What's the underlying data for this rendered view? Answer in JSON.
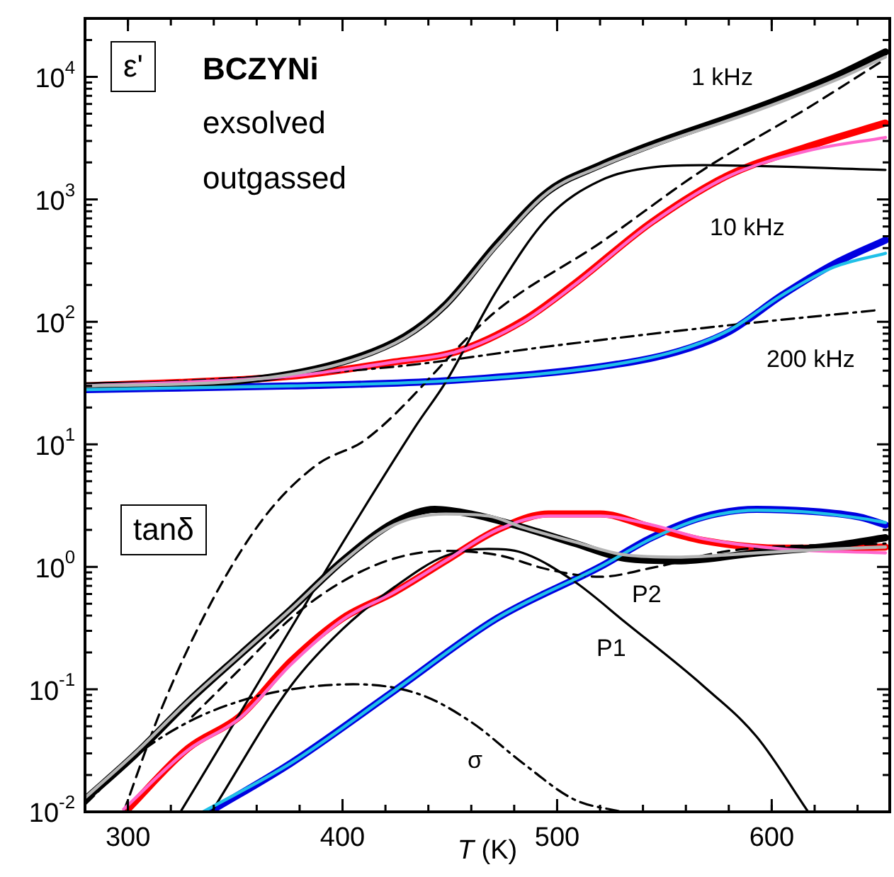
{
  "chart_data": {
    "type": "line",
    "xlabel": "T (K)",
    "xlim": [
      280,
      655
    ],
    "xticks": [
      300,
      400,
      500,
      600
    ],
    "log": "y",
    "ylim": [
      0.01,
      30000
    ],
    "yticks": [
      {
        "value": 0.01,
        "label": "10$^{-2}$"
      },
      {
        "value": 0.1,
        "label": "10$^{-1}$"
      },
      {
        "value": 1,
        "label": "10$^{0}$"
      },
      {
        "value": 10,
        "label": "10$^{1}$"
      },
      {
        "value": 100,
        "label": "10$^{2}$"
      },
      {
        "value": 1000,
        "label": "10$^{3}$"
      },
      {
        "value": 10000,
        "label": "10$^{4}$"
      }
    ],
    "annotations": [
      "ε'",
      "BCZYNi",
      "exsolved",
      "outgassed",
      "tanδ",
      "1 kHz",
      "10 kHz",
      "200 kHz",
      "P2",
      "P1",
      "σ"
    ],
    "series": [
      {
        "color": "#000000",
        "x": [
          280,
          352,
          400,
          429,
          448,
          472,
          496,
          520,
          544,
          593,
          629,
          653
        ],
        "values": [
          30,
          33,
          47,
          76,
          138,
          436,
          1170,
          1900,
          2800,
          5600,
          10000,
          16000
        ]
      },
      {
        "color": "#b4b4b4",
        "x": [
          280,
          352,
          400,
          429,
          448,
          472,
          496,
          520,
          544,
          593,
          629,
          653
        ],
        "values": [
          30,
          33,
          46,
          74,
          135,
          420,
          1150,
          1850,
          2700,
          5300,
          9300,
          14500
        ]
      },
      {
        "color": "#ff0000",
        "x": [
          280,
          376,
          424,
          453,
          484,
          508,
          544,
          580,
          617,
          653
        ],
        "values": [
          30,
          36,
          47,
          57,
          102,
          204,
          650,
          1580,
          2700,
          4200
        ]
      },
      {
        "color": "#ff66cc",
        "x": [
          280,
          376,
          424,
          453,
          484,
          508,
          544,
          580,
          617,
          653
        ],
        "values": [
          30,
          36,
          47,
          57,
          100,
          200,
          640,
          1550,
          2500,
          3200
        ]
      },
      {
        "color": "#0000e0",
        "x": [
          280,
          376,
          448,
          520,
          556,
          580,
          605,
          629,
          653
        ],
        "values": [
          28,
          30,
          33,
          43,
          57,
          83,
          166,
          297,
          465
        ]
      },
      {
        "color": "#20c0e8",
        "x": [
          280,
          376,
          448,
          520,
          556,
          580,
          605,
          629,
          653
        ],
        "values": [
          28,
          30,
          33,
          43,
          58,
          85,
          166,
          280,
          363
        ]
      },
      {
        "color": "#000000",
        "x": [
          280,
          304,
          328,
          352,
          376,
          400,
          424,
          443,
          460,
          484,
          508,
          532,
          556,
          593,
          629,
          653
        ],
        "values": [
          0.0126,
          0.03,
          0.079,
          0.19,
          0.45,
          1.12,
          2.3,
          2.95,
          2.7,
          2.1,
          1.56,
          1.17,
          1.12,
          1.3,
          1.49,
          1.73
        ]
      },
      {
        "color": "#b4b4b4",
        "x": [
          280,
          304,
          328,
          352,
          376,
          400,
          424,
          448,
          468,
          484,
          508,
          532,
          556,
          593,
          629,
          653
        ],
        "values": [
          0.013,
          0.031,
          0.08,
          0.19,
          0.45,
          1.1,
          2.2,
          2.7,
          2.6,
          2.1,
          1.6,
          1.25,
          1.2,
          1.3,
          1.4,
          1.45
        ]
      },
      {
        "color": "#ff0000",
        "x": [
          300,
          328,
          352,
          376,
          400,
          424,
          448,
          472,
          496,
          520,
          544,
          568,
          605,
          653
        ],
        "values": [
          0.0105,
          0.033,
          0.06,
          0.17,
          0.38,
          0.62,
          1.12,
          2,
          2.7,
          2.7,
          2.1,
          1.64,
          1.42,
          1.45
        ]
      },
      {
        "color": "#ff66cc",
        "x": [
          298,
          328,
          352,
          376,
          400,
          424,
          448,
          472,
          496,
          520,
          544,
          568,
          605,
          653
        ],
        "values": [
          0.0105,
          0.032,
          0.058,
          0.16,
          0.37,
          0.62,
          1.12,
          2,
          2.6,
          2.6,
          2.2,
          1.7,
          1.4,
          1.3
        ]
      },
      {
        "color": "#0000e0",
        "x": [
          338,
          376,
          424,
          472,
          520,
          544,
          568,
          593,
          617,
          641,
          653
        ],
        "values": [
          0.01,
          0.025,
          0.097,
          0.38,
          1,
          1.73,
          2.55,
          2.95,
          2.85,
          2.55,
          2.2
        ]
      },
      {
        "color": "#20c0e8",
        "x": [
          335,
          376,
          424,
          472,
          520,
          544,
          568,
          593,
          617,
          641,
          653
        ],
        "values": [
          0.01,
          0.025,
          0.097,
          0.38,
          1,
          1.7,
          2.5,
          2.9,
          2.8,
          2.5,
          2.3
        ]
      },
      {
        "color": "#000000",
        "line_style": "solid",
        "x": [
          324.5,
          434,
          448,
          472,
          496,
          520,
          544,
          568,
          653
        ],
        "values": [
          0.01,
          14,
          32,
          182,
          720,
          1420,
          1820,
          1900,
          1740
        ]
      },
      {
        "color": "#000000",
        "line_style": "dashed",
        "x": [
          298,
          316,
          340,
          364,
          388,
          411,
          472,
          520,
          568,
          617,
          653
        ],
        "values": [
          0.01,
          0.072,
          0.56,
          2.6,
          6.8,
          11,
          124,
          440,
          1740,
          5600,
          14000
        ]
      },
      {
        "color": "#000000",
        "line_style": "dashdot",
        "x": [
          280,
          424,
          496,
          568,
          648
        ],
        "values": [
          29.6,
          43,
          63,
          89,
          124
        ]
      },
      {
        "color": "#000000",
        "line_style": "solid",
        "x": [
          339,
          376,
          400,
          424,
          448,
          468,
          484,
          508,
          532,
          568,
          593,
          617
        ],
        "values": [
          0.01,
          0.107,
          0.31,
          0.68,
          1.23,
          1.4,
          1.3,
          0.76,
          0.35,
          0.107,
          0.041,
          0.01
        ]
      },
      {
        "color": "#000000",
        "line_style": "dashed",
        "x": [
          330,
          352,
          376,
          400,
          424,
          448,
          472,
          496,
          520,
          544,
          580,
          653
        ],
        "values": [
          0.06,
          0.145,
          0.38,
          0.76,
          1.17,
          1.35,
          1.25,
          0.95,
          0.83,
          0.98,
          1.35,
          1.55
        ]
      },
      {
        "color": "#000000",
        "line_style": "dashdot",
        "x": [
          280,
          304,
          328,
          352,
          376,
          405,
          436,
          460,
          484,
          508,
          530
        ],
        "values": [
          0.0115,
          0.029,
          0.054,
          0.08,
          0.1,
          0.11,
          0.091,
          0.054,
          0.025,
          0.0126,
          0.01
        ]
      }
    ]
  }
}
